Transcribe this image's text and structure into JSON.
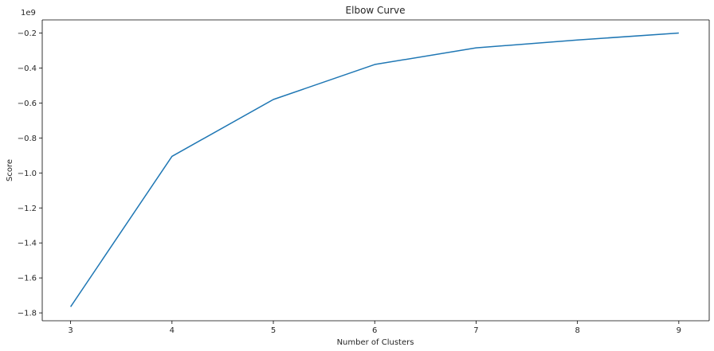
{
  "chart_data": {
    "type": "line",
    "title": "Elbow Curve",
    "xlabel": "Number of Clusters",
    "ylabel": "Score",
    "y_offset_label": "1e9",
    "x": [
      3,
      4,
      5,
      6,
      7,
      8,
      9
    ],
    "series": [
      {
        "values": [
          -1.765,
          -0.905,
          -0.58,
          -0.38,
          -0.285,
          -0.24,
          -0.2
        ],
        "color": "#1f77b4"
      }
    ],
    "xlim": [
      2.72,
      9.3
    ],
    "ylim": [
      -1.845,
      -0.125
    ],
    "x_ticks": [
      3,
      4,
      5,
      6,
      7,
      8,
      9
    ],
    "x_tick_labels": [
      "3",
      "4",
      "5",
      "6",
      "7",
      "8",
      "9"
    ],
    "y_ticks": [
      -1.8,
      -1.6,
      -1.4,
      -1.2,
      -1.0,
      -0.8,
      -0.6,
      -0.4,
      -0.2
    ],
    "y_tick_labels": [
      "−1.8",
      "−1.6",
      "−1.4",
      "−1.2",
      "−1.0",
      "−0.8",
      "−0.6",
      "−0.4",
      "−0.2"
    ],
    "y_unit_scale": 1000000000,
    "grid": false,
    "legend": "none"
  }
}
